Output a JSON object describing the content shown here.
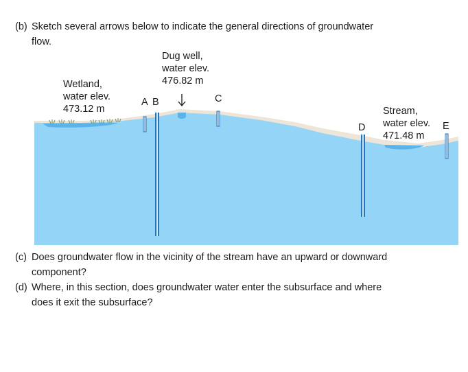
{
  "questions": {
    "b": {
      "label": "(b)",
      "line1": "Sketch several arrows below to indicate the general directions of groundwater",
      "line2": "flow."
    },
    "c": {
      "label": "(c)",
      "line1": "Does groundwater flow in the vicinity of the stream have an upward or downward",
      "line2": "component?"
    },
    "d": {
      "label": "(d)",
      "line1": "Where, in this section, does groundwater water enter the subsurface and where",
      "line2": "does it exit the subsurface?"
    }
  },
  "diagram": {
    "wetland": {
      "line1": "Wetland,",
      "line2": "water elev.",
      "line3": "473.12 m"
    },
    "dug_well": {
      "line1": "Dug well,",
      "line2": "water elev.",
      "line3": "476.82 m"
    },
    "stream": {
      "line1": "Stream,",
      "line2": "water elev.",
      "line3": "471.48 m"
    },
    "wells": {
      "a": "A",
      "b": "B",
      "c": "C",
      "d": "D",
      "e": "E"
    },
    "colors": {
      "groundwater": "#94d4f7",
      "surface_water": "#5bb3ea",
      "soil": "#ece5d8",
      "well_casing": "#2a74b8",
      "vegetation": "#7f9a6a"
    }
  }
}
